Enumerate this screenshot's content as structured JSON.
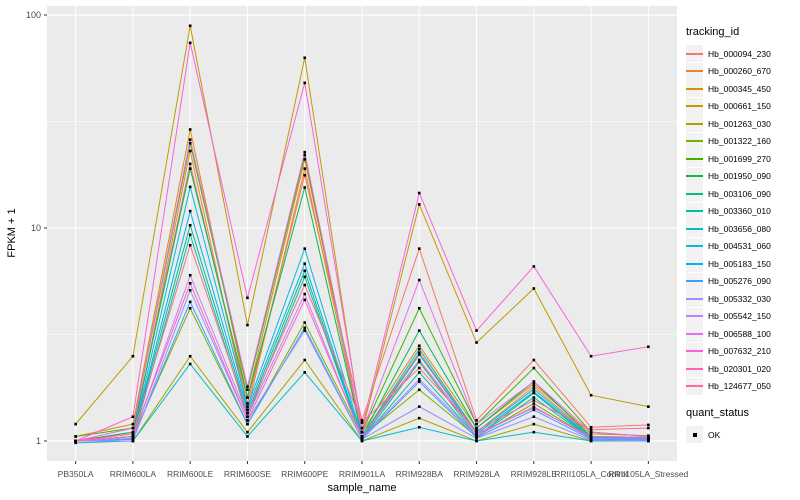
{
  "figure": {
    "bg": "#FFFFFF",
    "panel_bg": "#EBEBEB",
    "grid_color": "#FFFFFF",
    "axis_text_color": "#4D4D4D",
    "tick_color": "#333333",
    "point_color": "#000000",
    "legend_key_bg": "#F2F2F2"
  },
  "legend": {
    "tracking_title": "tracking_id",
    "quant_title": "quant_status",
    "quant_items": [
      "OK"
    ]
  },
  "chart_data": {
    "type": "line",
    "title": "",
    "xlabel": "sample_name",
    "ylabel": "FPKM + 1",
    "y_scale": "log10",
    "y_ticks": [
      1,
      10,
      100
    ],
    "y_minor_breaks": [
      3.162,
      31.62
    ],
    "ylim": [
      0.81,
      110
    ],
    "grid": true,
    "legend_position": "right",
    "point_shape": "black-square",
    "categories": [
      "PB350LA",
      "RRIM600LA",
      "RRIM600LE",
      "RRIM600SE",
      "RRIM600PE",
      "RRIM901LA",
      "RRIM928BA",
      "RRIM928LA",
      "RRIM928LE",
      "RRII105LA_Control",
      "RRII105LA_Stressed"
    ],
    "series": [
      {
        "name": "Hb_000094_230",
        "color": "#F8766D",
        "values": [
          1.0,
          1.1,
          20.0,
          1.5,
          17.7,
          1.25,
          8.0,
          1.25,
          2.4,
          1.16,
          1.19
        ]
      },
      {
        "name": "Hb_000260_670",
        "color": "#EA8331",
        "values": [
          1.0,
          1.05,
          23.0,
          1.4,
          19.0,
          1.05,
          2.6,
          1.1,
          1.8,
          1.05,
          1.04
        ]
      },
      {
        "name": "Hb_000345_450",
        "color": "#D89000",
        "values": [
          1.05,
          1.2,
          29.0,
          1.6,
          21.0,
          1.1,
          2.8,
          1.15,
          1.85,
          1.08,
          1.06
        ]
      },
      {
        "name": "Hb_000661_150",
        "color": "#C09B00",
        "values": [
          1.2,
          2.5,
          89.0,
          3.5,
          63.0,
          1.1,
          12.9,
          2.9,
          5.2,
          1.64,
          1.45
        ]
      },
      {
        "name": "Hb_001263_030",
        "color": "#A3A500",
        "values": [
          1.0,
          1.0,
          2.5,
          1.1,
          2.4,
          1.0,
          1.28,
          1.0,
          1.2,
          1.0,
          1.0
        ]
      },
      {
        "name": "Hb_001322_160",
        "color": "#7CAE00",
        "values": [
          1.0,
          1.05,
          4.2,
          1.2,
          3.6,
          1.05,
          1.74,
          1.05,
          1.5,
          1.03,
          1.02
        ]
      },
      {
        "name": "Hb_001699_270",
        "color": "#39B600",
        "values": [
          1.05,
          1.15,
          25.0,
          1.74,
          22.0,
          1.1,
          4.2,
          1.2,
          2.2,
          1.1,
          1.05
        ]
      },
      {
        "name": "Hb_001950_090",
        "color": "#00BB4E",
        "values": [
          1.0,
          1.1,
          19.0,
          1.6,
          15.5,
          1.05,
          3.3,
          1.15,
          1.9,
          1.05,
          1.03
        ]
      },
      {
        "name": "Hb_003106_090",
        "color": "#00BF7D",
        "values": [
          1.0,
          1.05,
          10.3,
          1.35,
          6.3,
          1.02,
          2.35,
          1.05,
          1.68,
          1.02,
          1.02
        ]
      },
      {
        "name": "Hb_003360_010",
        "color": "#00C1A3",
        "values": [
          1.0,
          1.02,
          9.3,
          1.3,
          5.9,
          1.02,
          2.1,
          1.05,
          1.6,
          1.02,
          1.01
        ]
      },
      {
        "name": "Hb_003656_080",
        "color": "#00BFC4",
        "values": [
          0.98,
          1.0,
          2.3,
          1.05,
          2.1,
          1.0,
          1.16,
          1.0,
          1.1,
          1.0,
          1.0
        ]
      },
      {
        "name": "Hb_004531_060",
        "color": "#00BAE0",
        "values": [
          1.0,
          1.05,
          15.6,
          1.45,
          8.0,
          1.05,
          2.7,
          1.1,
          1.75,
          1.04,
          1.03
        ]
      },
      {
        "name": "Hb_005183_150",
        "color": "#00B0F6",
        "values": [
          1.0,
          1.05,
          12.0,
          1.4,
          6.8,
          1.03,
          2.55,
          1.08,
          1.7,
          1.03,
          1.02
        ]
      },
      {
        "name": "Hb_005276_090",
        "color": "#35A2FF",
        "values": [
          1.0,
          1.02,
          4.5,
          1.2,
          3.4,
          1.02,
          1.9,
          1.04,
          1.4,
          1.02,
          1.01
        ]
      },
      {
        "name": "Hb_005332_030",
        "color": "#9590FF",
        "values": [
          1.0,
          1.0,
          5.1,
          1.25,
          3.3,
          1.02,
          1.45,
          1.03,
          1.3,
          1.01,
          1.0
        ]
      },
      {
        "name": "Hb_005542_150",
        "color": "#C77CFF",
        "values": [
          1.0,
          1.03,
          6.0,
          1.3,
          4.9,
          1.03,
          1.95,
          1.06,
          1.45,
          1.03,
          1.02
        ]
      },
      {
        "name": "Hb_006588_100",
        "color": "#E76BF3",
        "values": [
          1.0,
          1.15,
          26.0,
          1.8,
          22.7,
          1.1,
          5.7,
          1.2,
          1.9,
          1.1,
          1.05
        ]
      },
      {
        "name": "Hb_007632_210",
        "color": "#FA62DB",
        "values": [
          1.0,
          1.3,
          74.0,
          4.7,
          48.0,
          1.15,
          14.6,
          3.3,
          6.6,
          2.5,
          2.77
        ]
      },
      {
        "name": "Hb_020301_020",
        "color": "#FF62BC",
        "values": [
          1.0,
          1.05,
          5.5,
          1.25,
          4.6,
          1.05,
          2.4,
          1.08,
          1.43,
          1.05,
          1.04
        ]
      },
      {
        "name": "Hb_124677_050",
        "color": "#FF6A98",
        "values": [
          1.0,
          1.08,
          8.3,
          1.35,
          5.4,
          1.22,
          2.2,
          1.12,
          1.55,
          1.13,
          1.15
        ]
      }
    ]
  }
}
